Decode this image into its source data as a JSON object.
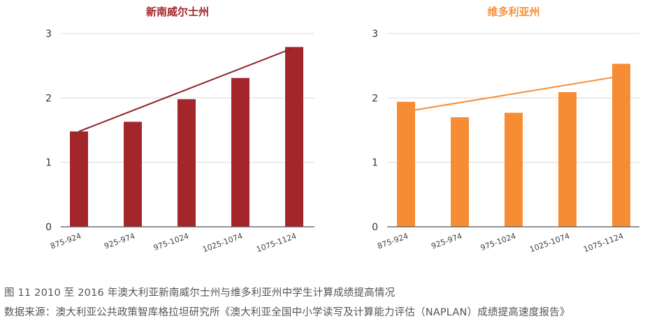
{
  "caption": {
    "figure": "图 11  2010 至 2016 年澳大利亚新南威尔士州与维多利亚州中学生计算成绩提高情况",
    "source": "数据来源：澳大利亚公共政策智库格拉坦研究所《澳大利亚全国中小学读写及计算能力评估（NAPLAN）成绩提高速度报告》"
  },
  "chart_data": [
    {
      "type": "bar",
      "title": "新南威尔士州",
      "title_color": "#a3262b",
      "bar_color": "#a3262b",
      "line_color": "#8f2327",
      "categories": [
        "875-924",
        "925-974",
        "975-1024",
        "1025-1074",
        "1075-1124"
      ],
      "values": [
        1.48,
        1.63,
        1.98,
        2.31,
        2.79
      ],
      "trend": [
        1.48,
        2.78
      ],
      "ylim": [
        0,
        3
      ],
      "yticks": [
        "0",
        "1",
        "2",
        "3"
      ],
      "grid": true,
      "xlabel": "",
      "ylabel": ""
    },
    {
      "type": "bar",
      "title": "维多利亚州",
      "title_color": "#f5913a",
      "bar_color": "#f68d35",
      "line_color": "#f68d35",
      "categories": [
        "875-924",
        "925-974",
        "975-1024",
        "1025-1074",
        "1075-1124"
      ],
      "values": [
        1.94,
        1.7,
        1.77,
        2.09,
        2.53
      ],
      "trend": [
        1.79,
        2.34
      ],
      "ylim": [
        0,
        3
      ],
      "yticks": [
        "0",
        "1",
        "2",
        "3"
      ],
      "grid": true,
      "xlabel": "",
      "ylabel": ""
    }
  ]
}
